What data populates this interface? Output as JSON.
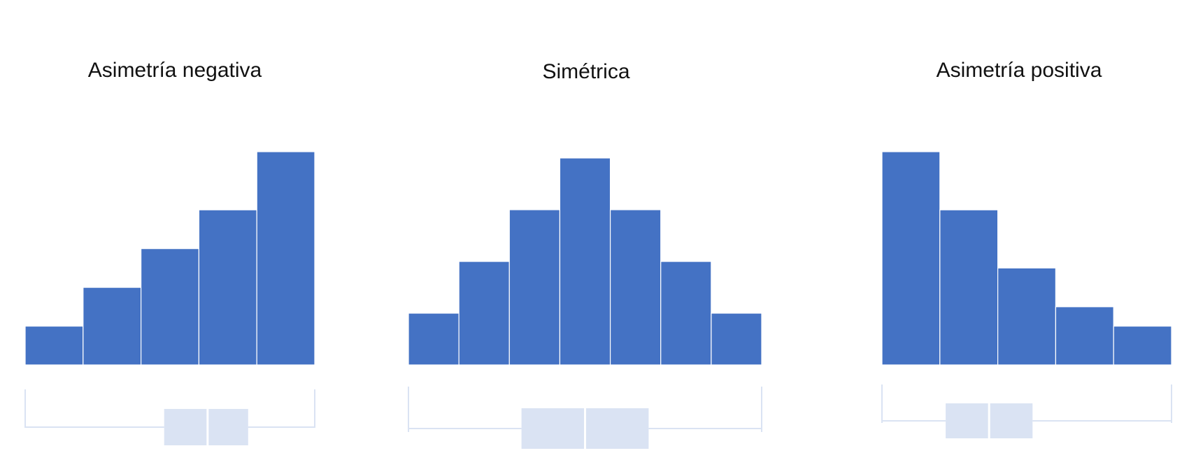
{
  "chart_data": [
    {
      "type": "bar",
      "title": "Asimetría negativa",
      "values": [
        1,
        2,
        3,
        4,
        5.5
      ],
      "ylim": [
        0,
        5.5
      ],
      "boxplot": {
        "min": 0,
        "q1": 0.48,
        "median": 0.63,
        "q3": 0.77,
        "max": 1
      }
    },
    {
      "type": "bar",
      "title": "Simétrica",
      "values": [
        1,
        2,
        3,
        4,
        3,
        2,
        1
      ],
      "ylim": [
        0,
        4
      ],
      "boxplot": {
        "min": 0,
        "q1": 0.32,
        "median": 0.5,
        "q3": 0.68,
        "max": 1
      }
    },
    {
      "type": "bar",
      "title": "Asimetría positiva",
      "values": [
        5.5,
        4,
        2.5,
        1.5,
        1
      ],
      "ylim": [
        0,
        5.5
      ],
      "boxplot": {
        "min": 0,
        "q1": 0.22,
        "median": 0.37,
        "q3": 0.52,
        "max": 1
      }
    }
  ],
  "colors": {
    "bar": "#4472c4",
    "bar_gap": "#ffffff",
    "boxplot": "#dae3f3"
  }
}
